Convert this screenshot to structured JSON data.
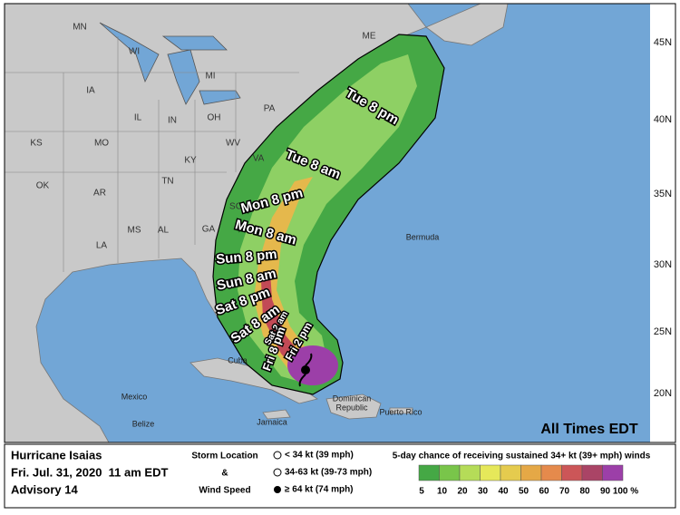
{
  "map": {
    "states": [
      "MN",
      "WI",
      "MI",
      "IA",
      "IL",
      "IN",
      "OH",
      "PA",
      "ME",
      "KS",
      "MO",
      "KY",
      "WV",
      "VA",
      "OK",
      "AR",
      "TN",
      "SC",
      "GA",
      "MS",
      "AL",
      "LA"
    ],
    "latitudes": [
      "45N",
      "40N",
      "35N",
      "30N",
      "25N",
      "20N"
    ],
    "places": [
      "Bermuda",
      "Cuba",
      "Mexico",
      "Belize",
      "Jamaica",
      "Dominican",
      "Republic",
      "Puerto Rico"
    ],
    "forecast_times": [
      "Tue 8 pm",
      "Tue 8 am",
      "Mon 8 pm",
      "Mon 8 am",
      "Sun 8 pm",
      "Sun 8 am",
      "Sat 8 pm",
      "Sat 8 am",
      "Sat 2 am",
      "Fri 8 pm",
      "Fri 2 pm"
    ],
    "note": "All Times EDT"
  },
  "legend": {
    "storm_name": "Hurricane Isaias",
    "issued": "Fri. Jul. 31, 2020  11 am EDT",
    "advisory": "Advisory 14",
    "storm_key_title": [
      "Storm Location",
      "&",
      "Wind Speed"
    ],
    "storm_key": [
      "< 34 kt (39 mph)",
      "34-63 kt (39-73 mph)",
      "≥ 64 kt (74 mph)"
    ],
    "probability_title": "5-day chance of receiving sustained 34+ kt (39+ mph) winds",
    "probability_colors": [
      "#45a845",
      "#79c54a",
      "#b5dc58",
      "#e6e85a",
      "#e5cb4e",
      "#e5a846",
      "#e58a4c",
      "#cc5658",
      "#aa4466",
      "#9c3fa8"
    ],
    "probability_labels": [
      "5",
      "10",
      "20",
      "30",
      "40",
      "50",
      "60",
      "70",
      "80",
      "90",
      "100 %"
    ]
  }
}
